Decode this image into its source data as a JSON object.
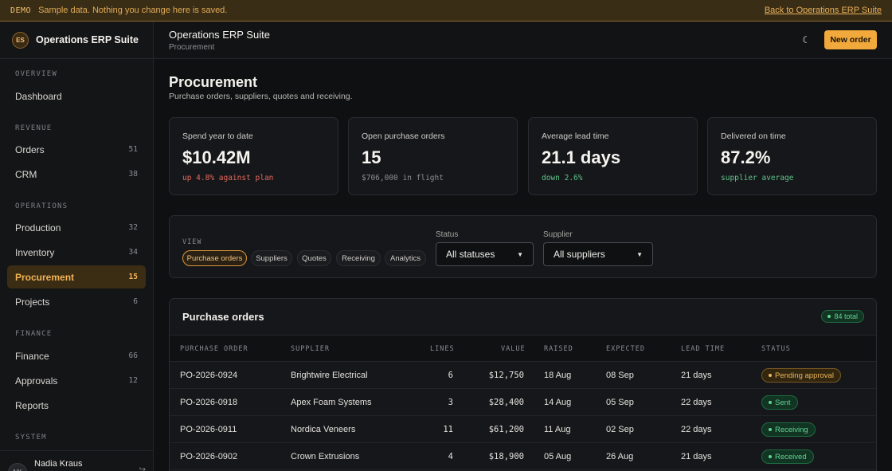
{
  "banner": {
    "tag": "DEMO",
    "message": "Sample data. Nothing you change here is saved.",
    "back_link": "Back to Operations ERP Suite"
  },
  "brand": {
    "initials": "ES",
    "name": "Operations ERP Suite"
  },
  "sidebar": {
    "sections": [
      {
        "label": "OVERVIEW",
        "items": [
          {
            "label": "Dashboard",
            "count": ""
          }
        ]
      },
      {
        "label": "REVENUE",
        "items": [
          {
            "label": "Orders",
            "count": "51"
          },
          {
            "label": "CRM",
            "count": "38"
          }
        ]
      },
      {
        "label": "OPERATIONS",
        "items": [
          {
            "label": "Production",
            "count": "32"
          },
          {
            "label": "Inventory",
            "count": "34"
          },
          {
            "label": "Procurement",
            "count": "15"
          },
          {
            "label": "Projects",
            "count": "6"
          }
        ]
      },
      {
        "label": "FINANCE",
        "items": [
          {
            "label": "Finance",
            "count": "66"
          },
          {
            "label": "Approvals",
            "count": "12"
          },
          {
            "label": "Reports",
            "count": ""
          }
        ]
      },
      {
        "label": "SYSTEM",
        "items": []
      }
    ],
    "user": {
      "initials": "NK",
      "name": "Nadia Kraus"
    }
  },
  "topbar": {
    "title": "Operations ERP Suite",
    "subtitle": "Procurement",
    "new_button": "New order"
  },
  "page": {
    "title": "Procurement",
    "subtitle": "Purchase orders, suppliers, quotes and receiving."
  },
  "kpis": [
    {
      "label": "Spend year to date",
      "value": "$10.42M",
      "note": "up 4.8% against plan"
    },
    {
      "label": "Open purchase orders",
      "value": "15",
      "note": "$706,000 in flight"
    },
    {
      "label": "Average lead time",
      "value": "21.1 days",
      "note": "down 2.6%"
    },
    {
      "label": "Delivered on time",
      "value": "87.2%",
      "note": "supplier average"
    }
  ],
  "filters": {
    "view_label": "VIEW",
    "views": [
      "Purchase orders",
      "Suppliers",
      "Quotes",
      "Receiving",
      "Analytics"
    ],
    "status_label": "Status",
    "status_value": "All statuses",
    "supplier_label": "Supplier",
    "supplier_value": "All suppliers"
  },
  "table": {
    "title": "Purchase orders",
    "total": "84 total",
    "columns": [
      "PURCHASE ORDER",
      "SUPPLIER",
      "LINES",
      "VALUE",
      "RAISED",
      "EXPECTED",
      "LEAD TIME",
      "STATUS"
    ],
    "rows": [
      {
        "po": "PO-2026-0924",
        "supplier": "Brightwire Electrical",
        "lines": "6",
        "value": "$12,750",
        "raised": "18 Aug",
        "expected": "08 Sep",
        "lead": "21 days",
        "status": "Pending approval"
      },
      {
        "po": "PO-2026-0918",
        "supplier": "Apex Foam Systems",
        "lines": "3",
        "value": "$28,400",
        "raised": "14 Aug",
        "expected": "05 Sep",
        "lead": "22 days",
        "status": "Sent"
      },
      {
        "po": "PO-2026-0911",
        "supplier": "Nordica Veneers",
        "lines": "11",
        "value": "$61,200",
        "raised": "11 Aug",
        "expected": "02 Sep",
        "lead": "22 days",
        "status": "Receiving"
      },
      {
        "po": "PO-2026-0902",
        "supplier": "Crown Extrusions",
        "lines": "4",
        "value": "$18,900",
        "raised": "05 Aug",
        "expected": "26 Aug",
        "lead": "21 days",
        "status": "Received"
      }
    ]
  },
  "colors": {
    "accent": "#f2a93b",
    "danger": "#e5695e",
    "success": "#5fc38a",
    "warning": "#eab65e"
  }
}
